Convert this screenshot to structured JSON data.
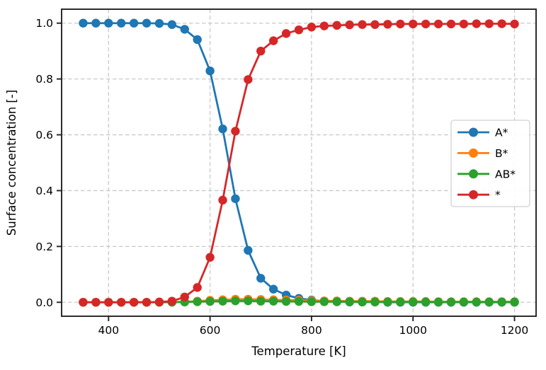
{
  "chart_data": {
    "type": "line",
    "title": "",
    "xlabel": "Temperature [K]",
    "ylabel": "Surface concentration [-]",
    "x": [
      350,
      375,
      400,
      425,
      450,
      475,
      500,
      525,
      550,
      575,
      600,
      625,
      650,
      675,
      700,
      725,
      750,
      775,
      800,
      825,
      850,
      875,
      900,
      925,
      950,
      975,
      1000,
      1025,
      1050,
      1075,
      1100,
      1125,
      1150,
      1175,
      1200
    ],
    "series": [
      {
        "name": "A*",
        "color": "#1f77b4",
        "values": [
          1.0,
          1.0,
          1.0,
          1.0,
          1.0,
          1.0,
          0.999,
          0.995,
          0.978,
          0.941,
          0.829,
          0.621,
          0.371,
          0.186,
          0.086,
          0.047,
          0.026,
          0.014,
          0.008,
          0.004,
          0.002,
          0.001,
          0.001,
          0.001,
          0.0,
          0.0,
          0.0,
          0.0,
          0.0,
          0.0,
          0.0,
          0.0,
          0.0,
          0.0,
          0.0
        ]
      },
      {
        "name": "B*",
        "color": "#ff7f0e",
        "values": [
          0.0,
          0.0,
          0.0,
          0.0,
          0.0,
          0.0,
          0.0,
          0.001,
          0.002,
          0.004,
          0.007,
          0.009,
          0.011,
          0.011,
          0.01,
          0.009,
          0.008,
          0.007,
          0.006,
          0.005,
          0.005,
          0.004,
          0.004,
          0.004,
          0.003,
          0.003,
          0.003,
          0.003,
          0.002,
          0.002,
          0.002,
          0.002,
          0.002,
          0.002,
          0.002
        ]
      },
      {
        "name": "AB*",
        "color": "#2ca02c",
        "values": [
          0.0,
          0.0,
          0.0,
          0.0,
          0.0,
          0.0,
          0.0,
          0.0,
          0.001,
          0.002,
          0.003,
          0.004,
          0.005,
          0.005,
          0.004,
          0.004,
          0.003,
          0.003,
          0.002,
          0.002,
          0.002,
          0.002,
          0.001,
          0.001,
          0.001,
          0.001,
          0.001,
          0.001,
          0.001,
          0.001,
          0.001,
          0.001,
          0.001,
          0.001,
          0.001
        ]
      },
      {
        "name": "*",
        "color": "#d62728",
        "values": [
          0.0,
          0.0,
          0.0,
          0.0,
          0.0,
          0.0,
          0.001,
          0.004,
          0.019,
          0.053,
          0.161,
          0.366,
          0.613,
          0.798,
          0.9,
          0.937,
          0.963,
          0.976,
          0.986,
          0.99,
          0.992,
          0.994,
          0.995,
          0.995,
          0.996,
          0.997,
          0.997,
          0.997,
          0.997,
          0.997,
          0.997,
          0.998,
          0.998,
          0.998,
          0.997
        ]
      }
    ],
    "xlim": [
      307.5,
      1242.5
    ],
    "ylim": [
      -0.05,
      1.05
    ],
    "xticks": [
      400,
      600,
      800,
      1000,
      1200
    ],
    "ytick_labels": [
      "0.0",
      "0.2",
      "0.4",
      "0.6",
      "0.8",
      "1.0"
    ],
    "yticks": [
      0.0,
      0.2,
      0.4,
      0.6,
      0.8,
      1.0
    ],
    "grid": true,
    "grid_style": "dashed",
    "legend": {
      "entries": [
        "A*",
        "B*",
        "AB*",
        "*"
      ],
      "position": "center-right"
    },
    "marker": "circle",
    "style": {
      "grid_color": "#c9c9c9",
      "spine_color": "#222222",
      "background": "#ffffff",
      "legend_border": "#d2d2d2",
      "legend_background": "#ffffff"
    }
  }
}
